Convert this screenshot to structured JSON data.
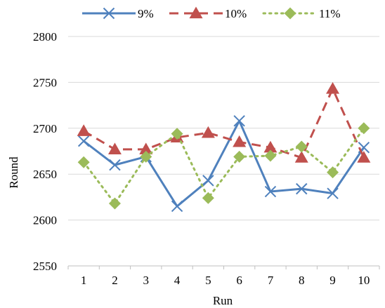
{
  "chart_data": {
    "type": "line",
    "title": "",
    "xlabel": "Run",
    "ylabel": "Round",
    "categories": [
      "1",
      "2",
      "3",
      "4",
      "5",
      "6",
      "7",
      "8",
      "9",
      "10"
    ],
    "ylim": [
      2550,
      2800
    ],
    "yticks": [
      2550,
      2600,
      2650,
      2700,
      2750,
      2800
    ],
    "grid": {
      "horizontal": true,
      "vertical": false
    },
    "legend": {
      "position": "top"
    },
    "series": [
      {
        "name": "9%",
        "color": "#4f81bd",
        "line_style": "solid",
        "marker": "x",
        "values": [
          2686,
          2660,
          2669,
          2615,
          2643,
          2708,
          2631,
          2634,
          2629,
          2679
        ]
      },
      {
        "name": "10%",
        "color": "#c0504d",
        "line_style": "dashed",
        "marker": "triangle",
        "values": [
          2697,
          2677,
          2677,
          2690,
          2695,
          2685,
          2679,
          2668,
          2743,
          2668
        ]
      },
      {
        "name": "11%",
        "color": "#9bbb59",
        "line_style": "dotted",
        "marker": "diamond",
        "values": [
          2663,
          2618,
          2669,
          2694,
          2624,
          2669,
          2670,
          2680,
          2652,
          2700
        ]
      }
    ]
  }
}
